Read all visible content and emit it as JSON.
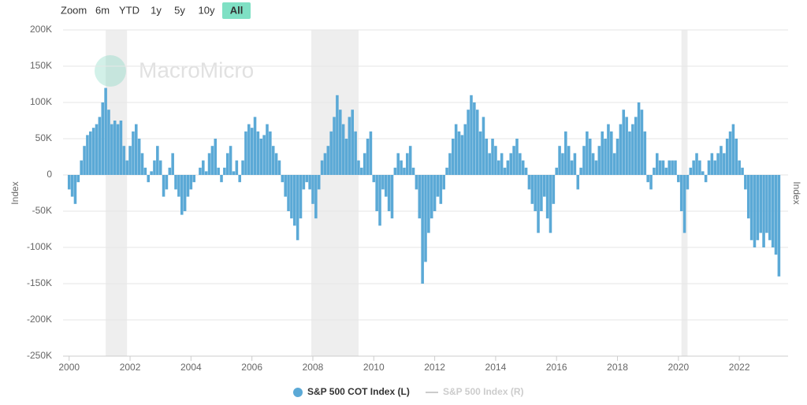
{
  "chart_data": {
    "type": "bar",
    "range_selector": {
      "label": "Zoom",
      "buttons": [
        "6m",
        "YTD",
        "1y",
        "5y",
        "10y",
        "All"
      ],
      "active": 5
    },
    "watermark": "MacroMicro",
    "y_label": "Index",
    "y2_label": "Index",
    "xlim": [
      1999.8,
      2023.6
    ],
    "xticks": [
      2000,
      2002,
      2004,
      2006,
      2008,
      2010,
      2012,
      2014,
      2016,
      2018,
      2020,
      2022
    ],
    "ylim": [
      -250000,
      200000
    ],
    "yticks": [
      {
        "value": -250000,
        "label": "-250K"
      },
      {
        "value": -200000,
        "label": "-200K"
      },
      {
        "value": -150000,
        "label": "-150K"
      },
      {
        "value": -100000,
        "label": "-100K"
      },
      {
        "value": -50000,
        "label": "-50K"
      },
      0,
      {
        "value": 50000,
        "label": "50K"
      },
      {
        "value": 100000,
        "label": "100K"
      },
      {
        "value": 150000,
        "label": "150K"
      },
      {
        "value": 200000,
        "label": "200K"
      }
    ],
    "grid": true,
    "shaded_periods": [
      [
        2001.2,
        2001.9
      ],
      [
        2007.95,
        2009.5
      ],
      [
        2020.1,
        2020.3
      ]
    ],
    "x": [
      2000.0,
      2000.1,
      2000.2,
      2000.3,
      2000.4,
      2000.5,
      2000.6,
      2000.7,
      2000.8,
      2000.9,
      2001.0,
      2001.1,
      2001.2,
      2001.3,
      2001.4,
      2001.5,
      2001.6,
      2001.7,
      2001.8,
      2001.9,
      2002.0,
      2002.1,
      2002.2,
      2002.3,
      2002.4,
      2002.5,
      2002.6,
      2002.7,
      2002.8,
      2002.9,
      2003.0,
      2003.1,
      2003.2,
      2003.3,
      2003.4,
      2003.5,
      2003.6,
      2003.7,
      2003.8,
      2003.9,
      2004.0,
      2004.1,
      2004.2,
      2004.3,
      2004.4,
      2004.5,
      2004.6,
      2004.7,
      2004.8,
      2004.9,
      2005.0,
      2005.1,
      2005.2,
      2005.3,
      2005.4,
      2005.5,
      2005.6,
      2005.7,
      2005.8,
      2005.9,
      2006.0,
      2006.1,
      2006.2,
      2006.3,
      2006.4,
      2006.5,
      2006.6,
      2006.7,
      2006.8,
      2006.9,
      2007.0,
      2007.1,
      2007.2,
      2007.3,
      2007.4,
      2007.5,
      2007.6,
      2007.7,
      2007.8,
      2007.9,
      2008.0,
      2008.1,
      2008.2,
      2008.3,
      2008.4,
      2008.5,
      2008.6,
      2008.7,
      2008.8,
      2008.9,
      2009.0,
      2009.1,
      2009.2,
      2009.3,
      2009.4,
      2009.5,
      2009.6,
      2009.7,
      2009.8,
      2009.9,
      2010.0,
      2010.1,
      2010.2,
      2010.3,
      2010.4,
      2010.5,
      2010.6,
      2010.7,
      2010.8,
      2010.9,
      2011.0,
      2011.1,
      2011.2,
      2011.3,
      2011.4,
      2011.5,
      2011.6,
      2011.7,
      2011.8,
      2011.9,
      2012.0,
      2012.1,
      2012.2,
      2012.3,
      2012.4,
      2012.5,
      2012.6,
      2012.7,
      2012.8,
      2012.9,
      2013.0,
      2013.1,
      2013.2,
      2013.3,
      2013.4,
      2013.5,
      2013.6,
      2013.7,
      2013.8,
      2013.9,
      2014.0,
      2014.1,
      2014.2,
      2014.3,
      2014.4,
      2014.5,
      2014.6,
      2014.7,
      2014.8,
      2014.9,
      2015.0,
      2015.1,
      2015.2,
      2015.3,
      2015.4,
      2015.5,
      2015.6,
      2015.7,
      2015.8,
      2015.9,
      2016.0,
      2016.1,
      2016.2,
      2016.3,
      2016.4,
      2016.5,
      2016.6,
      2016.7,
      2016.8,
      2016.9,
      2017.0,
      2017.1,
      2017.2,
      2017.3,
      2017.4,
      2017.5,
      2017.6,
      2017.7,
      2017.8,
      2017.9,
      2018.0,
      2018.1,
      2018.2,
      2018.3,
      2018.4,
      2018.5,
      2018.6,
      2018.7,
      2018.8,
      2018.9,
      2019.0,
      2019.1,
      2019.2,
      2019.3,
      2019.4,
      2019.5,
      2019.6,
      2019.7,
      2019.8,
      2019.9,
      2020.0,
      2020.1,
      2020.2,
      2020.3,
      2020.4,
      2020.5,
      2020.6,
      2020.7,
      2020.8,
      2020.9,
      2021.0,
      2021.1,
      2021.2,
      2021.3,
      2021.4,
      2021.5,
      2021.6,
      2021.7,
      2021.8,
      2021.9,
      2022.0,
      2022.1,
      2022.2,
      2022.3,
      2022.4,
      2022.5,
      2022.6,
      2022.7,
      2022.8,
      2022.9,
      2023.0,
      2023.1,
      2023.2,
      2023.3
    ],
    "series": [
      {
        "name": "S&P 500 COT Index (L)",
        "color": "#5ba9d6",
        "values": [
          -20000,
          -30000,
          -40000,
          -10000,
          20000,
          40000,
          55000,
          60000,
          65000,
          70000,
          80000,
          100000,
          120000,
          90000,
          70000,
          75000,
          70000,
          75000,
          40000,
          20000,
          40000,
          60000,
          70000,
          50000,
          30000,
          10000,
          -10000,
          5000,
          20000,
          40000,
          20000,
          -30000,
          -20000,
          10000,
          30000,
          -20000,
          -30000,
          -55000,
          -50000,
          -30000,
          -20000,
          -10000,
          0,
          10000,
          20000,
          5000,
          30000,
          40000,
          50000,
          10000,
          -10000,
          10000,
          30000,
          40000,
          5000,
          20000,
          -10000,
          20000,
          60000,
          70000,
          65000,
          80000,
          60000,
          50000,
          55000,
          70000,
          60000,
          40000,
          30000,
          20000,
          -10000,
          -30000,
          -50000,
          -60000,
          -70000,
          -90000,
          -60000,
          -20000,
          -10000,
          -20000,
          -40000,
          -60000,
          -20000,
          20000,
          30000,
          40000,
          60000,
          80000,
          110000,
          90000,
          70000,
          50000,
          80000,
          90000,
          60000,
          20000,
          10000,
          30000,
          50000,
          60000,
          -10000,
          -50000,
          -70000,
          -20000,
          -30000,
          -50000,
          -60000,
          10000,
          30000,
          20000,
          10000,
          30000,
          40000,
          10000,
          -20000,
          -60000,
          -150000,
          -120000,
          -80000,
          -60000,
          -50000,
          -30000,
          -40000,
          -20000,
          10000,
          30000,
          50000,
          70000,
          60000,
          55000,
          70000,
          90000,
          110000,
          100000,
          90000,
          60000,
          80000,
          50000,
          30000,
          50000,
          40000,
          20000,
          30000,
          10000,
          20000,
          30000,
          40000,
          50000,
          30000,
          20000,
          10000,
          -20000,
          -40000,
          -50000,
          -80000,
          -50000,
          -30000,
          -60000,
          -80000,
          -40000,
          10000,
          40000,
          30000,
          60000,
          40000,
          20000,
          30000,
          -20000,
          10000,
          40000,
          60000,
          50000,
          30000,
          20000,
          40000,
          60000,
          50000,
          70000,
          60000,
          30000,
          50000,
          70000,
          90000,
          80000,
          60000,
          70000,
          80000,
          100000,
          90000,
          60000,
          -10000,
          -20000,
          10000,
          30000,
          20000,
          20000,
          10000,
          20000,
          20000,
          20000,
          -10000,
          -50000,
          -80000,
          -20000,
          10000,
          20000,
          30000,
          20000,
          5000,
          -10000,
          20000,
          30000,
          20000,
          30000,
          40000,
          30000,
          50000,
          60000,
          70000,
          50000,
          20000,
          10000,
          -20000,
          -60000,
          -90000,
          -100000,
          -90000,
          -80000,
          -100000,
          -80000,
          -90000,
          -100000,
          -110000,
          -140000
        ]
      },
      {
        "name": "S&P 500 Index (R)",
        "color": "#cccccc",
        "visible": false
      }
    ]
  }
}
